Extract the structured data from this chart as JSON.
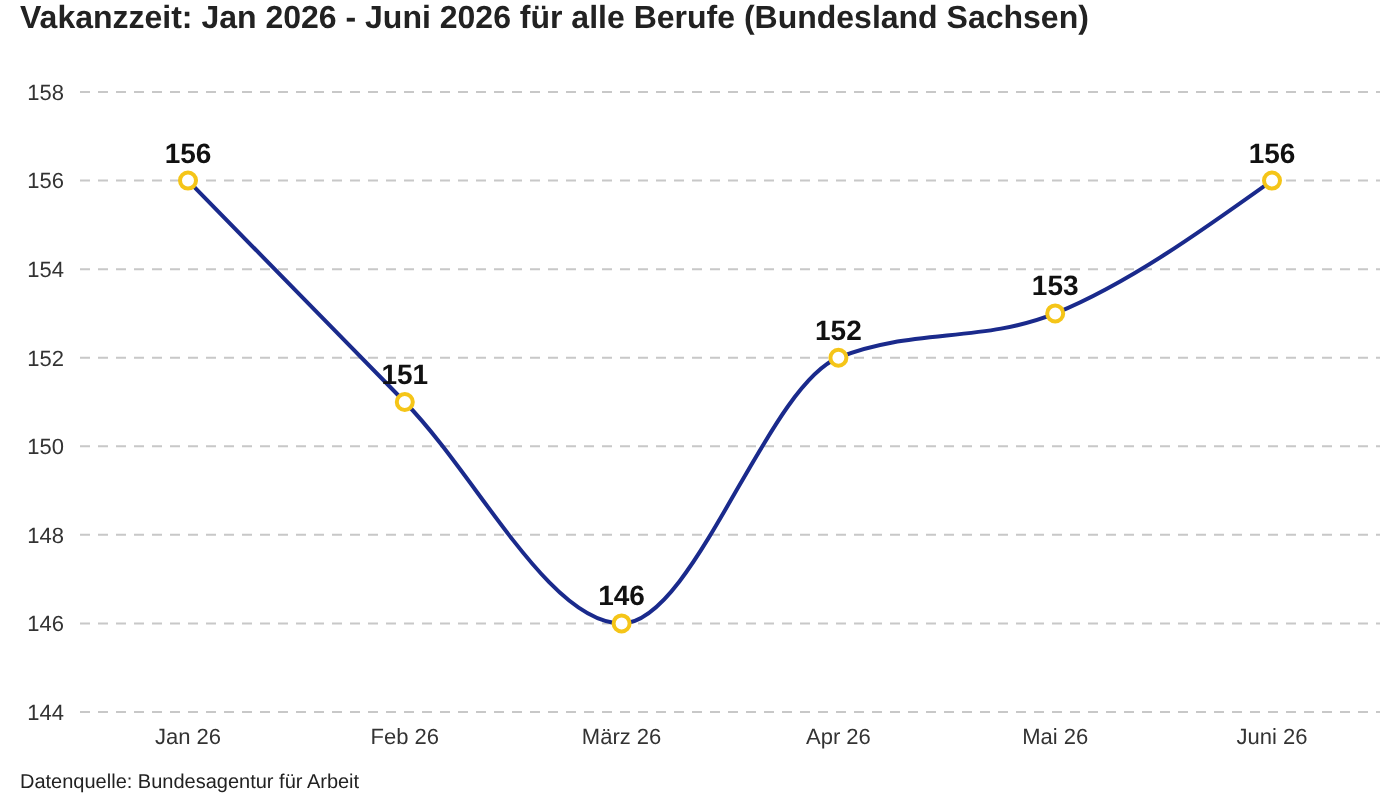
{
  "chart_data": {
    "type": "line",
    "title": "Vakanzzeit: Jan 2026 - Juni 2026 für alle Berufe (Bundesland Sachsen)",
    "categories": [
      "Jan 26",
      "Feb 26",
      "März 26",
      "Apr 26",
      "Mai 26",
      "Juni 26"
    ],
    "series": [
      {
        "color": "#1a2a8c",
        "values": [
          156,
          151,
          146,
          152,
          153,
          156
        ]
      }
    ],
    "ylim": [
      144,
      158
    ],
    "yticks": [
      144,
      146,
      148,
      150,
      152,
      154,
      156,
      158
    ],
    "grid": "y",
    "marker": "circle",
    "data_labels": true,
    "annotations": [
      "Datenquelle: Bundesagentur für Arbeit"
    ]
  }
}
